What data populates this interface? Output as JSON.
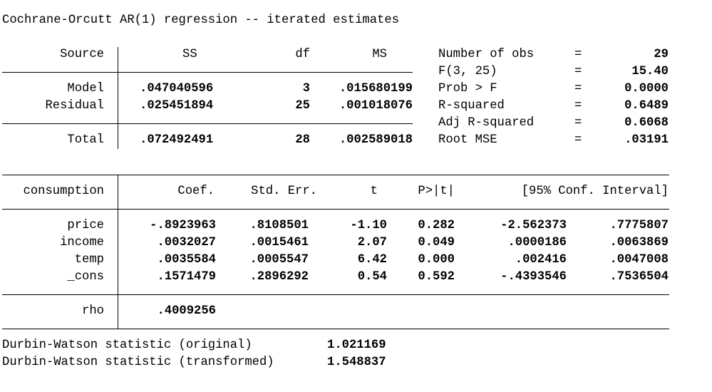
{
  "title": "Cochrane-Orcutt AR(1) regression -- iterated estimates",
  "anova": {
    "headers": {
      "source": "Source",
      "ss": "SS",
      "df": "df",
      "ms": "MS"
    },
    "rows": [
      {
        "source": "Model",
        "ss": ".047040596",
        "df": "3",
        "ms": ".015680199"
      },
      {
        "source": "Residual",
        "ss": ".025451894",
        "df": "25",
        "ms": ".001018076"
      }
    ],
    "total": {
      "source": "Total",
      "ss": ".072492491",
      "df": "28",
      "ms": ".002589018"
    }
  },
  "fit_stats": [
    {
      "label": "Number of obs",
      "eq": "=",
      "value": "29"
    },
    {
      "label": "F(3, 25)",
      "eq": "=",
      "value": "15.40"
    },
    {
      "label": "Prob > F",
      "eq": "=",
      "value": "0.0000"
    },
    {
      "label": "R-squared",
      "eq": "=",
      "value": "0.6489"
    },
    {
      "label": "Adj R-squared",
      "eq": "=",
      "value": "0.6068"
    },
    {
      "label": "Root MSE",
      "eq": "=",
      "value": ".03191"
    }
  ],
  "coef_table": {
    "headers": {
      "depvar": "consumption",
      "coef": "Coef.",
      "se": "Std. Err.",
      "t": "t",
      "p": "P>|t|",
      "ci": "[95% Conf. Interval]"
    },
    "rows": [
      {
        "var": "price",
        "coef": "-.8923963",
        "se": ".8108501",
        "t": "-1.10",
        "p": "0.282",
        "lo": "-2.562373",
        "hi": ".7775807"
      },
      {
        "var": "income",
        "coef": ".0032027",
        "se": ".0015461",
        "t": "2.07",
        "p": "0.049",
        "lo": ".0000186",
        "hi": ".0063869"
      },
      {
        "var": "temp",
        "coef": ".0035584",
        "se": ".0005547",
        "t": "6.42",
        "p": "0.000",
        "lo": ".002416",
        "hi": ".0047008"
      },
      {
        "var": "_cons",
        "coef": ".1571479",
        "se": ".2896292",
        "t": "0.54",
        "p": "0.592",
        "lo": "-.4393546",
        "hi": ".7536504"
      }
    ],
    "rho": {
      "label": "rho",
      "value": ".4009256"
    }
  },
  "durbin_watson": [
    {
      "label": "Durbin-Watson statistic (original)",
      "value": "1.021169"
    },
    {
      "label": "Durbin-Watson statistic (transformed)",
      "value": "1.548837"
    }
  ]
}
